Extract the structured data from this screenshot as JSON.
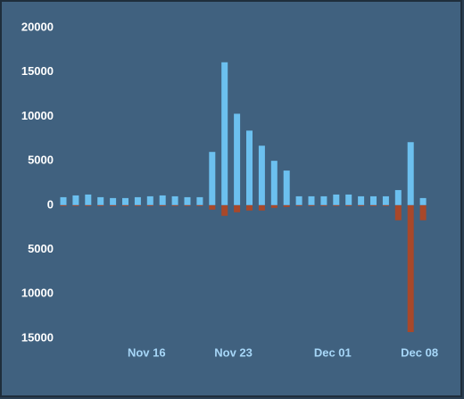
{
  "chart_data": {
    "type": "bar",
    "categories": [
      null,
      null,
      null,
      null,
      null,
      null,
      null,
      "Nov 16",
      null,
      null,
      null,
      null,
      null,
      null,
      "Nov 23",
      null,
      null,
      null,
      null,
      null,
      null,
      null,
      "Dec 01",
      null,
      null,
      null,
      null,
      null,
      null,
      "Dec 08"
    ],
    "series": [
      {
        "color": "#6cc0ef",
        "values": [
          900,
          1100,
          1200,
          900,
          800,
          800,
          900,
          1000,
          1100,
          1000,
          900,
          900,
          6000,
          16100,
          10300,
          8400,
          6700,
          5000,
          3900,
          1000,
          1000,
          1000,
          1200,
          1200,
          1000,
          1000,
          1000,
          1700,
          7100,
          800
        ]
      },
      {
        "color": "#a8482a",
        "values": [
          -100,
          -100,
          -100,
          -100,
          -100,
          -100,
          -100,
          -100,
          -100,
          -100,
          -100,
          -100,
          -500,
          -1200,
          -800,
          -600,
          -600,
          -300,
          -200,
          -100,
          -100,
          -100,
          -100,
          -100,
          -100,
          -100,
          -100,
          -1700,
          -14300,
          -1700
        ]
      }
    ],
    "ylim": [
      -15000,
      20000
    ],
    "yticks": [
      20000,
      15000,
      10000,
      5000,
      0,
      {
        "value": -5000,
        "label": "5000"
      },
      {
        "value": -10000,
        "label": "10000"
      },
      {
        "value": -15000,
        "label": "15000"
      }
    ]
  }
}
